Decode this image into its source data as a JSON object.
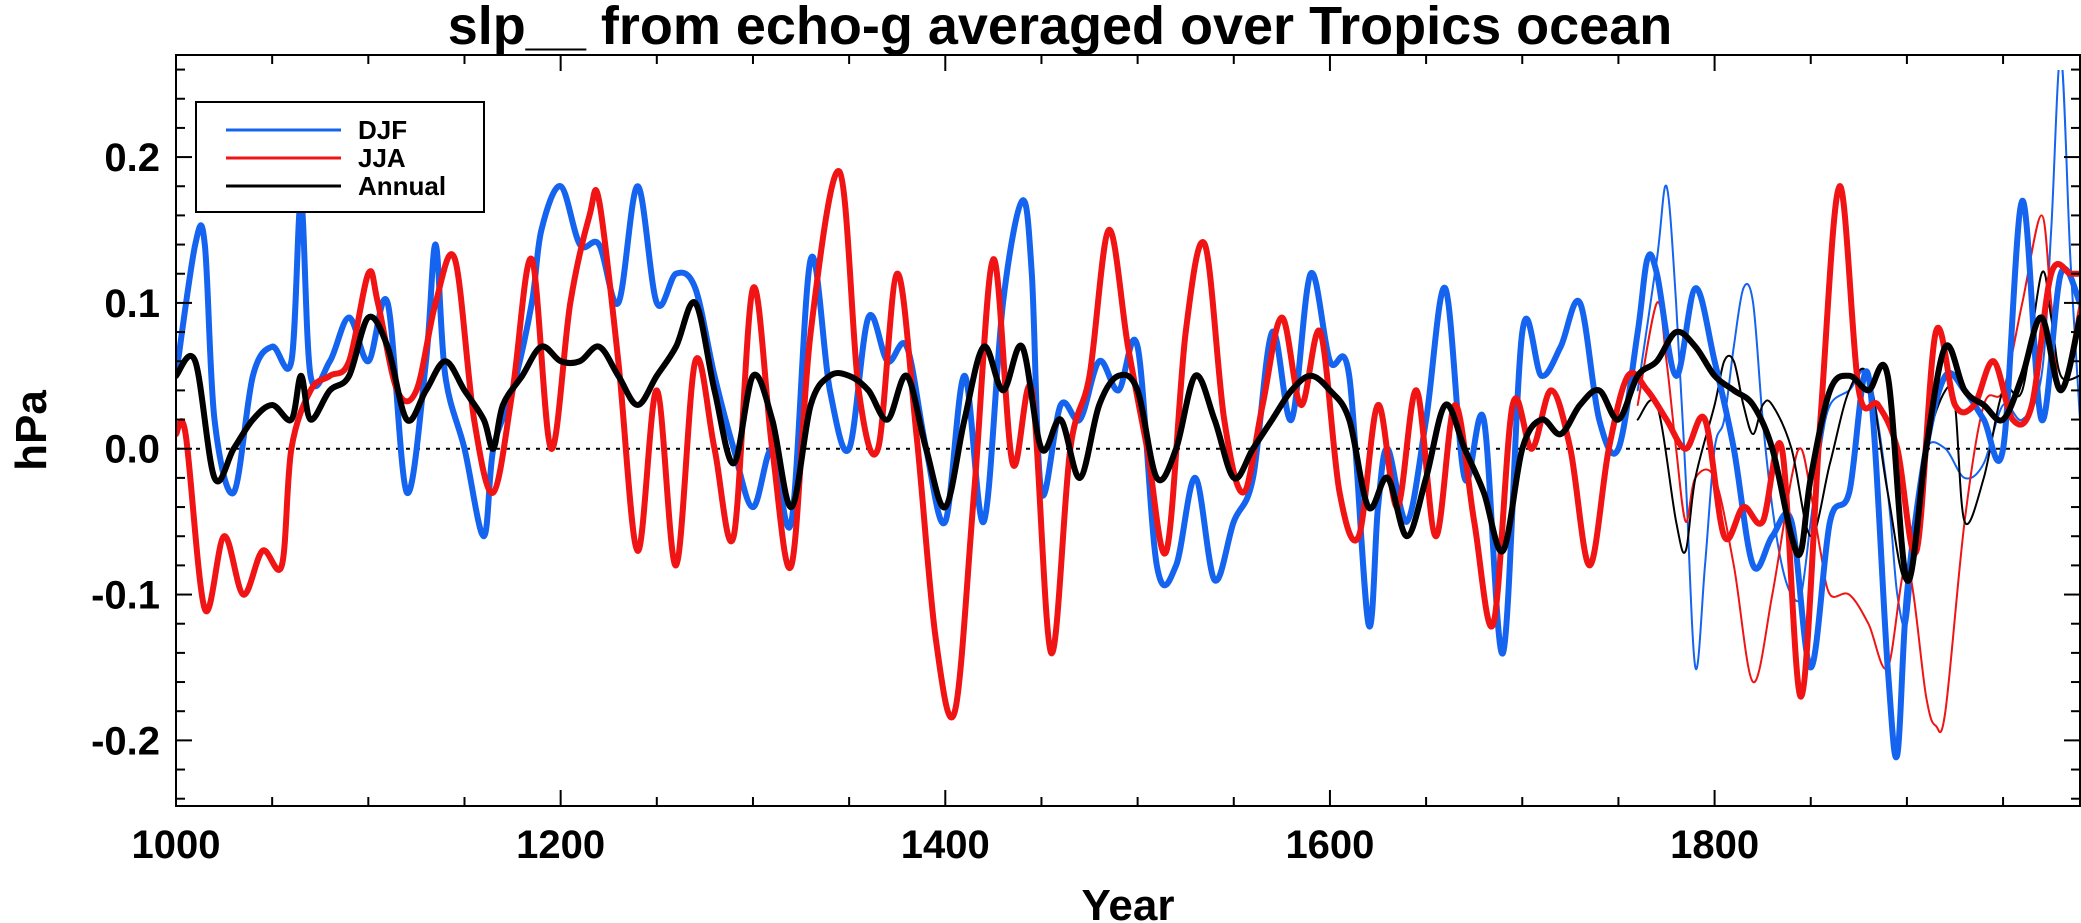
{
  "chart_data": {
    "type": "line",
    "title": "slp__ from echo-g averaged over Tropics ocean",
    "xlabel": "Year",
    "ylabel": "hPa",
    "xlim": [
      1000,
      1990
    ],
    "ylim": [
      -0.245,
      0.27
    ],
    "xticks": [
      1000,
      1200,
      1400,
      1600,
      1800
    ],
    "xtick_labels": [
      "1000",
      "1200",
      "1400",
      "1600",
      "1800"
    ],
    "yticks": [
      -0.2,
      -0.1,
      0.0,
      0.1,
      0.2
    ],
    "ytick_labels": [
      "-0.2",
      "-0.1",
      "0.0",
      "0.1",
      "0.2"
    ],
    "reference_line": 0.0,
    "legend_position": "top-left",
    "legend": [
      {
        "label": "DJF",
        "color": "#1464f0"
      },
      {
        "label": "JJA",
        "color": "#f01414"
      },
      {
        "label": "Annual",
        "color": "#000000"
      }
    ],
    "series": [
      {
        "name": "DJF",
        "color": "#1464f0",
        "style": "thick",
        "x": [
          1000,
          1010,
          1015,
          1020,
          1030,
          1040,
          1050,
          1060,
          1065,
          1070,
          1080,
          1090,
          1100,
          1110,
          1120,
          1130,
          1135,
          1140,
          1150,
          1160,
          1165,
          1175,
          1185,
          1190,
          1200,
          1210,
          1220,
          1230,
          1240,
          1250,
          1260,
          1270,
          1280,
          1290,
          1300,
          1310,
          1320,
          1330,
          1340,
          1350,
          1360,
          1370,
          1380,
          1390,
          1400,
          1410,
          1420,
          1430,
          1440,
          1445,
          1450,
          1460,
          1470,
          1480,
          1490,
          1500,
          1510,
          1520,
          1530,
          1540,
          1550,
          1560,
          1570,
          1580,
          1590,
          1600,
          1610,
          1620,
          1625,
          1630,
          1640,
          1650,
          1660,
          1670,
          1680,
          1690,
          1700,
          1710,
          1720,
          1730,
          1740,
          1750,
          1760,
          1765,
          1770,
          1780,
          1790,
          1800,
          1810,
          1820,
          1830,
          1840,
          1850,
          1860,
          1870,
          1880,
          1890,
          1895,
          1900,
          1910,
          1920,
          1930,
          1940,
          1950,
          1960,
          1970,
          1980,
          1990
        ],
        "y": [
          0.05,
          0.14,
          0.14,
          0.02,
          -0.03,
          0.05,
          0.07,
          0.06,
          0.17,
          0.05,
          0.06,
          0.09,
          0.06,
          0.1,
          -0.03,
          0.06,
          0.14,
          0.05,
          0.0,
          -0.06,
          0.0,
          0.04,
          0.1,
          0.15,
          0.18,
          0.14,
          0.14,
          0.1,
          0.18,
          0.1,
          0.12,
          0.11,
          0.05,
          0.0,
          -0.04,
          0.0,
          -0.05,
          0.13,
          0.04,
          0.0,
          0.09,
          0.06,
          0.07,
          0.0,
          -0.05,
          0.05,
          -0.05,
          0.1,
          0.17,
          0.12,
          -0.03,
          0.03,
          0.02,
          0.06,
          0.04,
          0.07,
          -0.08,
          -0.08,
          -0.02,
          -0.09,
          -0.05,
          -0.02,
          0.08,
          0.02,
          0.12,
          0.06,
          0.05,
          -0.12,
          -0.04,
          0.0,
          -0.05,
          0.02,
          0.11,
          -0.02,
          0.02,
          -0.14,
          0.08,
          0.05,
          0.07,
          0.1,
          0.02,
          0.0,
          0.08,
          0.13,
          0.12,
          0.05,
          0.11,
          0.06,
          0.0,
          -0.08,
          -0.06,
          -0.05,
          -0.15,
          -0.05,
          -0.03,
          0.05,
          -0.15,
          -0.21,
          -0.1,
          0.0,
          0.05,
          0.04,
          0.02,
          0.0,
          0.17,
          0.02,
          0.12,
          0.1
        ]
      },
      {
        "name": "JJA",
        "color": "#f01414",
        "style": "thick",
        "x": [
          1000,
          1005,
          1015,
          1025,
          1035,
          1045,
          1055,
          1060,
          1070,
          1080,
          1090,
          1100,
          1105,
          1115,
          1125,
          1135,
          1145,
          1155,
          1165,
          1175,
          1185,
          1195,
          1205,
          1215,
          1220,
          1230,
          1240,
          1250,
          1260,
          1270,
          1280,
          1290,
          1300,
          1310,
          1320,
          1330,
          1345,
          1355,
          1365,
          1375,
          1385,
          1395,
          1405,
          1415,
          1425,
          1435,
          1445,
          1455,
          1465,
          1475,
          1485,
          1495,
          1505,
          1515,
          1525,
          1535,
          1545,
          1555,
          1565,
          1575,
          1585,
          1595,
          1605,
          1615,
          1625,
          1635,
          1645,
          1655,
          1665,
          1675,
          1685,
          1695,
          1705,
          1715,
          1725,
          1735,
          1745,
          1755,
          1765,
          1775,
          1785,
          1795,
          1805,
          1815,
          1825,
          1835,
          1845,
          1855,
          1865,
          1875,
          1885,
          1895,
          1905,
          1915,
          1925,
          1935,
          1945,
          1955,
          1965,
          1975,
          1985,
          1990
        ],
        "y": [
          0.01,
          0.01,
          -0.11,
          -0.06,
          -0.1,
          -0.07,
          -0.08,
          0.0,
          0.04,
          0.05,
          0.06,
          0.12,
          0.1,
          0.04,
          0.04,
          0.1,
          0.13,
          0.02,
          -0.03,
          0.04,
          0.13,
          0.0,
          0.1,
          0.16,
          0.17,
          0.06,
          -0.07,
          0.04,
          -0.08,
          0.06,
          0.0,
          -0.06,
          0.11,
          0.0,
          -0.08,
          0.08,
          0.19,
          0.04,
          0.0,
          0.12,
          0.01,
          -0.13,
          -0.18,
          -0.03,
          0.13,
          -0.01,
          0.04,
          -0.14,
          0.0,
          0.05,
          0.15,
          0.07,
          0.0,
          -0.07,
          0.08,
          0.14,
          0.02,
          -0.03,
          0.03,
          0.09,
          0.03,
          0.08,
          -0.03,
          -0.06,
          0.03,
          -0.04,
          0.04,
          -0.06,
          0.03,
          -0.05,
          -0.12,
          0.03,
          0.0,
          0.04,
          0.0,
          -0.08,
          0.0,
          0.05,
          0.04,
          0.02,
          0.0,
          0.02,
          -0.06,
          -0.04,
          -0.05,
          0.0,
          -0.17,
          0.02,
          0.18,
          0.04,
          0.03,
          0.0,
          -0.07,
          0.08,
          0.03,
          0.03,
          0.06,
          0.02,
          0.03,
          0.12,
          0.12,
          0.12
        ]
      },
      {
        "name": "Annual",
        "color": "#000000",
        "style": "thick",
        "x": [
          1000,
          1010,
          1020,
          1030,
          1040,
          1050,
          1060,
          1065,
          1070,
          1080,
          1090,
          1100,
          1110,
          1120,
          1130,
          1140,
          1150,
          1160,
          1165,
          1170,
          1180,
          1190,
          1200,
          1210,
          1220,
          1230,
          1240,
          1250,
          1260,
          1270,
          1280,
          1290,
          1300,
          1310,
          1320,
          1330,
          1340,
          1350,
          1360,
          1370,
          1380,
          1390,
          1400,
          1410,
          1420,
          1430,
          1440,
          1450,
          1460,
          1470,
          1480,
          1490,
          1500,
          1510,
          1520,
          1530,
          1540,
          1550,
          1560,
          1570,
          1580,
          1590,
          1600,
          1610,
          1620,
          1630,
          1640,
          1650,
          1660,
          1670,
          1680,
          1690,
          1700,
          1710,
          1720,
          1730,
          1740,
          1750,
          1760,
          1770,
          1780,
          1790,
          1800,
          1810,
          1820,
          1830,
          1840,
          1845,
          1850,
          1860,
          1870,
          1880,
          1890,
          1900,
          1910,
          1920,
          1930,
          1940,
          1950,
          1960,
          1970,
          1980,
          1990
        ],
        "y": [
          0.05,
          0.06,
          -0.02,
          0.0,
          0.02,
          0.03,
          0.02,
          0.05,
          0.02,
          0.04,
          0.05,
          0.09,
          0.07,
          0.02,
          0.04,
          0.06,
          0.04,
          0.02,
          0.0,
          0.03,
          0.05,
          0.07,
          0.06,
          0.06,
          0.07,
          0.05,
          0.03,
          0.05,
          0.07,
          0.1,
          0.04,
          -0.01,
          0.05,
          0.02,
          -0.04,
          0.03,
          0.05,
          0.05,
          0.04,
          0.02,
          0.05,
          0.0,
          -0.04,
          0.02,
          0.07,
          0.04,
          0.07,
          0.0,
          0.02,
          -0.02,
          0.03,
          0.05,
          0.04,
          -0.02,
          0.0,
          0.05,
          0.02,
          -0.02,
          0.0,
          0.02,
          0.04,
          0.05,
          0.04,
          0.02,
          -0.04,
          -0.02,
          -0.06,
          -0.02,
          0.03,
          0.0,
          -0.03,
          -0.07,
          0.0,
          0.02,
          0.01,
          0.03,
          0.04,
          0.02,
          0.05,
          0.06,
          0.08,
          0.07,
          0.05,
          0.04,
          0.03,
          0.0,
          -0.06,
          -0.07,
          -0.02,
          0.04,
          0.05,
          0.04,
          0.05,
          -0.09,
          0.0,
          0.07,
          0.04,
          0.03,
          0.02,
          0.05,
          0.09,
          0.04,
          0.09
        ]
      },
      {
        "name": "DJF (thin)",
        "color": "#1464f0",
        "style": "thin",
        "x": [
          1760,
          1770,
          1775,
          1780,
          1785,
          1790,
          1795,
          1800,
          1805,
          1810,
          1815,
          1820,
          1825,
          1830,
          1835,
          1840,
          1845,
          1850,
          1855,
          1860,
          1870,
          1880,
          1890,
          1895,
          1900,
          1905,
          1910,
          1920,
          1930,
          1940,
          1950,
          1960,
          1970,
          1975,
          1980,
          1985,
          1990
        ],
        "y": [
          0.04,
          0.13,
          0.18,
          0.1,
          -0.02,
          -0.15,
          -0.08,
          0.0,
          0.02,
          0.07,
          0.11,
          0.1,
          0.02,
          -0.04,
          -0.08,
          -0.1,
          -0.1,
          -0.05,
          0.0,
          0.03,
          0.04,
          0.05,
          -0.03,
          -0.1,
          -0.12,
          -0.05,
          0.0,
          0.0,
          -0.02,
          -0.01,
          0.03,
          0.02,
          0.05,
          0.15,
          0.27,
          0.13,
          0.02
        ]
      },
      {
        "name": "JJA (thin)",
        "color": "#f01414",
        "style": "thin",
        "x": [
          1760,
          1770,
          1775,
          1780,
          1785,
          1790,
          1800,
          1810,
          1820,
          1830,
          1840,
          1845,
          1850,
          1855,
          1860,
          1870,
          1880,
          1890,
          1900,
          1910,
          1915,
          1920,
          1930,
          1940,
          1950,
          1960,
          1970,
          1975,
          1980,
          1990
        ],
        "y": [
          0.03,
          0.1,
          0.06,
          0.0,
          -0.05,
          -0.02,
          -0.02,
          -0.08,
          -0.16,
          -0.1,
          -0.02,
          0.0,
          -0.03,
          -0.07,
          -0.1,
          -0.1,
          -0.12,
          -0.15,
          -0.08,
          -0.17,
          -0.19,
          -0.18,
          -0.05,
          0.03,
          0.04,
          0.1,
          0.16,
          0.1,
          0.04,
          0.1
        ]
      },
      {
        "name": "Annual (thin)",
        "color": "#000000",
        "style": "thin",
        "x": [
          1760,
          1770,
          1780,
          1785,
          1790,
          1800,
          1805,
          1810,
          1815,
          1820,
          1825,
          1830,
          1840,
          1850,
          1860,
          1870,
          1880,
          1890,
          1900,
          1910,
          1920,
          1925,
          1930,
          1940,
          1950,
          1960,
          1970,
          1975,
          1980,
          1990
        ],
        "y": [
          0.02,
          0.03,
          -0.05,
          -0.07,
          -0.02,
          0.03,
          0.06,
          0.06,
          0.03,
          0.01,
          0.03,
          0.03,
          0.0,
          -0.06,
          -0.01,
          0.04,
          0.05,
          -0.03,
          -0.09,
          0.0,
          0.04,
          0.03,
          -0.05,
          -0.02,
          0.04,
          0.04,
          0.12,
          0.09,
          0.05,
          0.05
        ]
      }
    ]
  }
}
